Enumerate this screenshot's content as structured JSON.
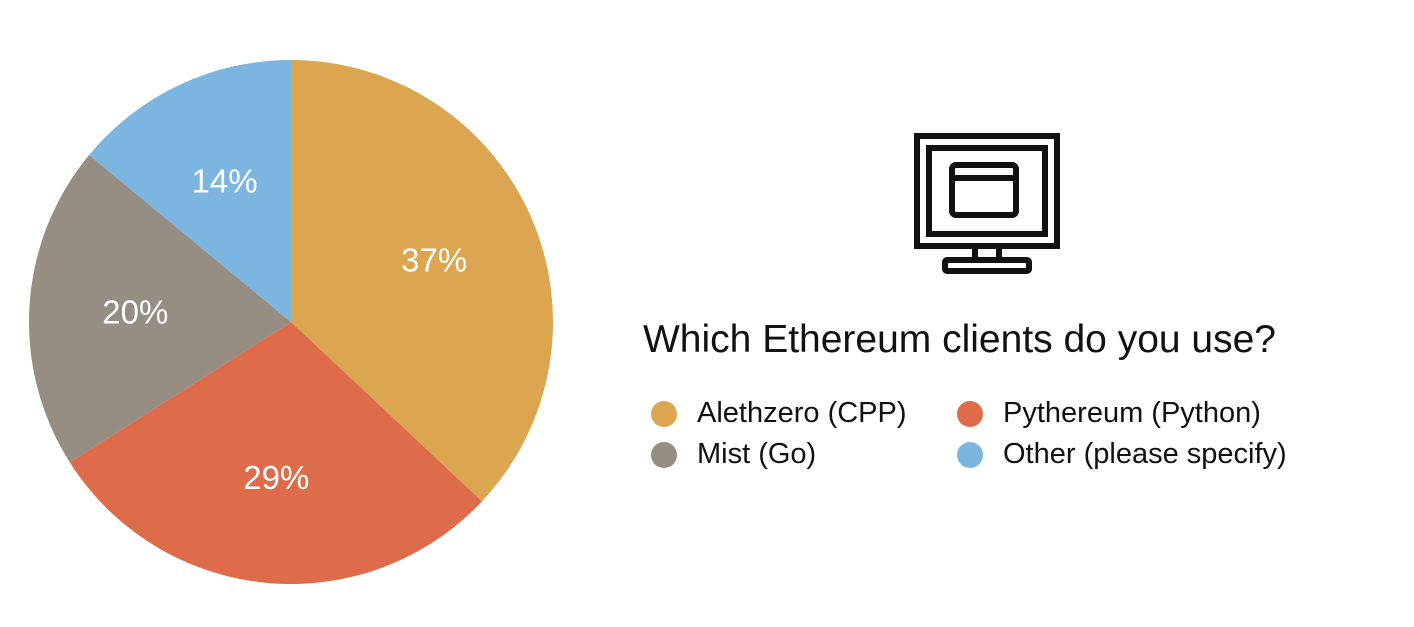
{
  "chart_data": {
    "type": "pie",
    "title": "Which Ethereum clients do you use?",
    "slices": [
      {
        "name": "Alethzero (CPP)",
        "value": 37,
        "label": "37%",
        "color": "#DCA54F"
      },
      {
        "name": "Pythereum (Python)",
        "value": 29,
        "label": "29%",
        "color": "#DE6C4A"
      },
      {
        "name": "Mist (Go)",
        "value": 20,
        "label": "20%",
        "color": "#968D83"
      },
      {
        "name": "Other (please specify)",
        "value": 14,
        "label": "14%",
        "color": "#7BB5E0"
      }
    ],
    "legend": {
      "placement": "right",
      "items": [
        "Alethzero (CPP)",
        "Pythereum (Python)",
        "Mist (Go)",
        "Other (please specify)"
      ]
    }
  },
  "icon": "monitor-icon"
}
